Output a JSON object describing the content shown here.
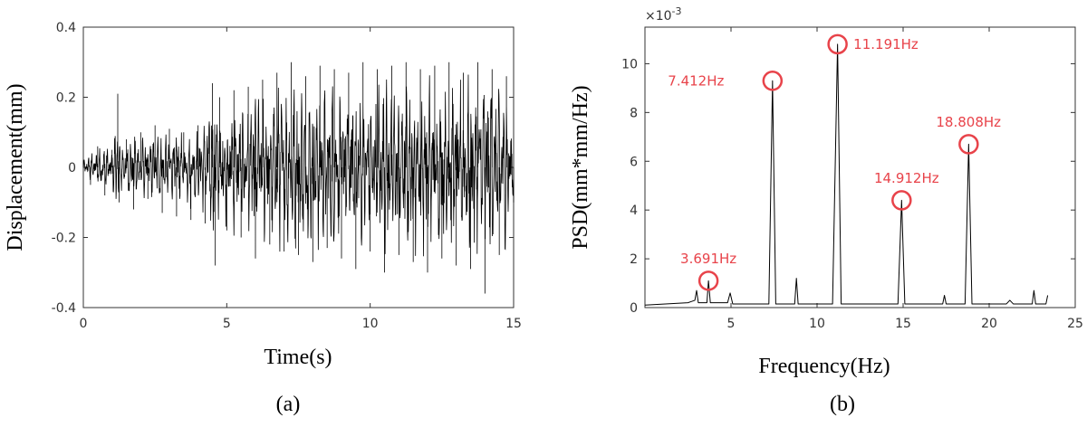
{
  "chart_data": [
    {
      "type": "line",
      "panel_label": "(a)",
      "xlabel": "Time(s)",
      "ylabel": "Displacement(mm)",
      "xlim": [
        0,
        15
      ],
      "ylim": [
        -0.4,
        0.4
      ],
      "xticks": [
        "0",
        "5",
        "10",
        "15"
      ],
      "yticks": [
        "-0.4",
        "-0.2",
        "0",
        "0.2",
        "0.4"
      ],
      "grid": false,
      "series": [
        {
          "color": "#000000",
          "description_values": "dense random vibration signal",
          "x": [
            0,
            0.25,
            0.5,
            0.75,
            1.0,
            1.2,
            1.25,
            1.5,
            1.75,
            2.0,
            2.25,
            2.5,
            2.75,
            3.0,
            3.25,
            3.5,
            3.75,
            4.0,
            4.25,
            4.5,
            4.6,
            4.75,
            5.0,
            5.25,
            5.5,
            5.75,
            6.0,
            6.25,
            6.5,
            6.75,
            7.0,
            7.25,
            7.5,
            7.75,
            8.0,
            8.25,
            8.5,
            8.75,
            9.0,
            9.25,
            9.5,
            9.75,
            10.0,
            10.25,
            10.5,
            10.75,
            11.0,
            11.25,
            11.5,
            11.75,
            12.0,
            12.25,
            12.5,
            12.75,
            13.0,
            13.25,
            13.5,
            13.75,
            14.0,
            14.25,
            14.5,
            14.75,
            15.0
          ],
          "y": [
            0.02,
            -0.05,
            0.06,
            -0.08,
            0.05,
            0.21,
            -0.1,
            0.08,
            -0.12,
            0.1,
            -0.09,
            0.12,
            -0.13,
            0.11,
            -0.14,
            0.1,
            -0.15,
            0.12,
            -0.16,
            0.24,
            -0.28,
            0.2,
            -0.18,
            0.22,
            -0.2,
            0.23,
            -0.26,
            0.25,
            -0.22,
            0.27,
            -0.24,
            0.3,
            -0.25,
            0.26,
            -0.27,
            0.29,
            -0.23,
            0.28,
            -0.26,
            0.27,
            -0.29,
            0.3,
            -0.24,
            0.28,
            -0.3,
            0.29,
            -0.25,
            0.3,
            -0.27,
            0.28,
            -0.3,
            0.29,
            -0.26,
            0.3,
            -0.28,
            0.27,
            -0.29,
            0.3,
            -0.36,
            0.28,
            -0.25,
            0.26,
            -0.1
          ]
        }
      ]
    },
    {
      "type": "line",
      "panel_label": "(b)",
      "xlabel": "Frequency(Hz)",
      "ylabel": "PSD(mm*mm/Hz)",
      "exponent_label": "×10",
      "exponent_power": "-3",
      "xlim": [
        0,
        25
      ],
      "ylim": [
        0,
        11.5
      ],
      "xticks": [
        "5",
        "10",
        "15",
        "20",
        "25"
      ],
      "yticks": [
        "0",
        "2",
        "4",
        "6",
        "8",
        "10"
      ],
      "grid": false,
      "series": [
        {
          "color": "#000000",
          "x": [
            0,
            2.5,
            2.9,
            3.0,
            3.1,
            3.6,
            3.69,
            3.8,
            4.8,
            4.95,
            5.1,
            7.2,
            7.412,
            7.6,
            8.7,
            8.8,
            8.9,
            10.9,
            11.191,
            11.4,
            14.7,
            14.912,
            15.1,
            17.3,
            17.4,
            17.5,
            18.6,
            18.808,
            19.0,
            21.0,
            21.2,
            21.4,
            22.5,
            22.6,
            22.7,
            23.3,
            23.4
          ],
          "y": [
            0.1,
            0.2,
            0.3,
            0.7,
            0.2,
            0.2,
            1.1,
            0.2,
            0.2,
            0.6,
            0.15,
            0.15,
            9.3,
            0.15,
            0.15,
            1.2,
            0.15,
            0.15,
            10.8,
            0.15,
            0.15,
            4.4,
            0.15,
            0.15,
            0.5,
            0.15,
            0.15,
            6.7,
            0.15,
            0.15,
            0.3,
            0.15,
            0.15,
            0.7,
            0.15,
            0.15,
            0.5
          ]
        }
      ],
      "annotations": [
        {
          "label": "3.691Hz",
          "x": 3.691,
          "y": 1.1,
          "label_x": 3.69,
          "label_y": 2.0
        },
        {
          "label": "7.412Hz",
          "x": 7.412,
          "y": 9.3,
          "label_x": 4.6,
          "label_y": 9.3
        },
        {
          "label": "11.191Hz",
          "x": 11.191,
          "y": 10.8,
          "label_x": 14.0,
          "label_y": 10.8
        },
        {
          "label": "14.912Hz",
          "x": 14.912,
          "y": 4.4,
          "label_x": 15.2,
          "label_y": 5.3
        },
        {
          "label": "18.808Hz",
          "x": 18.808,
          "y": 6.7,
          "label_x": 18.8,
          "label_y": 7.6
        }
      ],
      "annotation_color": "#e8434a"
    }
  ]
}
